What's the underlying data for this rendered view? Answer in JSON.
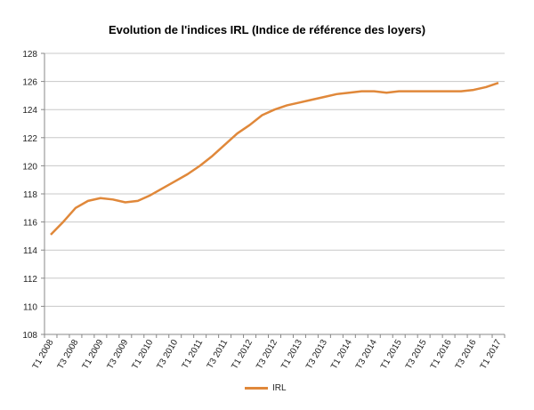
{
  "chart_data": {
    "type": "line",
    "title": "Evolution de l'indices IRL (Indice de référence des loyers)",
    "xlabel": "",
    "ylabel": "",
    "ylim": [
      108,
      128
    ],
    "yticks": [
      108,
      110,
      112,
      114,
      116,
      118,
      120,
      122,
      124,
      126,
      128
    ],
    "grid": true,
    "legend_position": "bottom",
    "x_tick_labels": [
      "T1 2008",
      "T3 2008",
      "T1 2009",
      "T3 2009",
      "T1 2010",
      "T3 2010",
      "T1 2011",
      "T3 2011",
      "T1 2012",
      "T3 2012",
      "T1 2013",
      "T3 2013",
      "T1 2014",
      "T3 2014",
      "T1 2015",
      "T3 2015",
      "T1 2016",
      "T3 2016",
      "T1 2017"
    ],
    "series": [
      {
        "name": "IRL",
        "color": "#e0883a",
        "values": [
          115.1,
          116.0,
          117.0,
          117.5,
          117.7,
          117.6,
          117.4,
          117.5,
          117.9,
          118.4,
          118.9,
          119.4,
          120.0,
          120.7,
          121.5,
          122.3,
          122.9,
          123.6,
          124.0,
          124.3,
          124.5,
          124.7,
          124.9,
          125.1,
          125.2,
          125.3,
          125.3,
          125.2,
          125.3,
          125.3,
          125.3,
          125.3,
          125.3,
          125.3,
          125.4,
          125.6,
          125.9
        ]
      }
    ]
  }
}
